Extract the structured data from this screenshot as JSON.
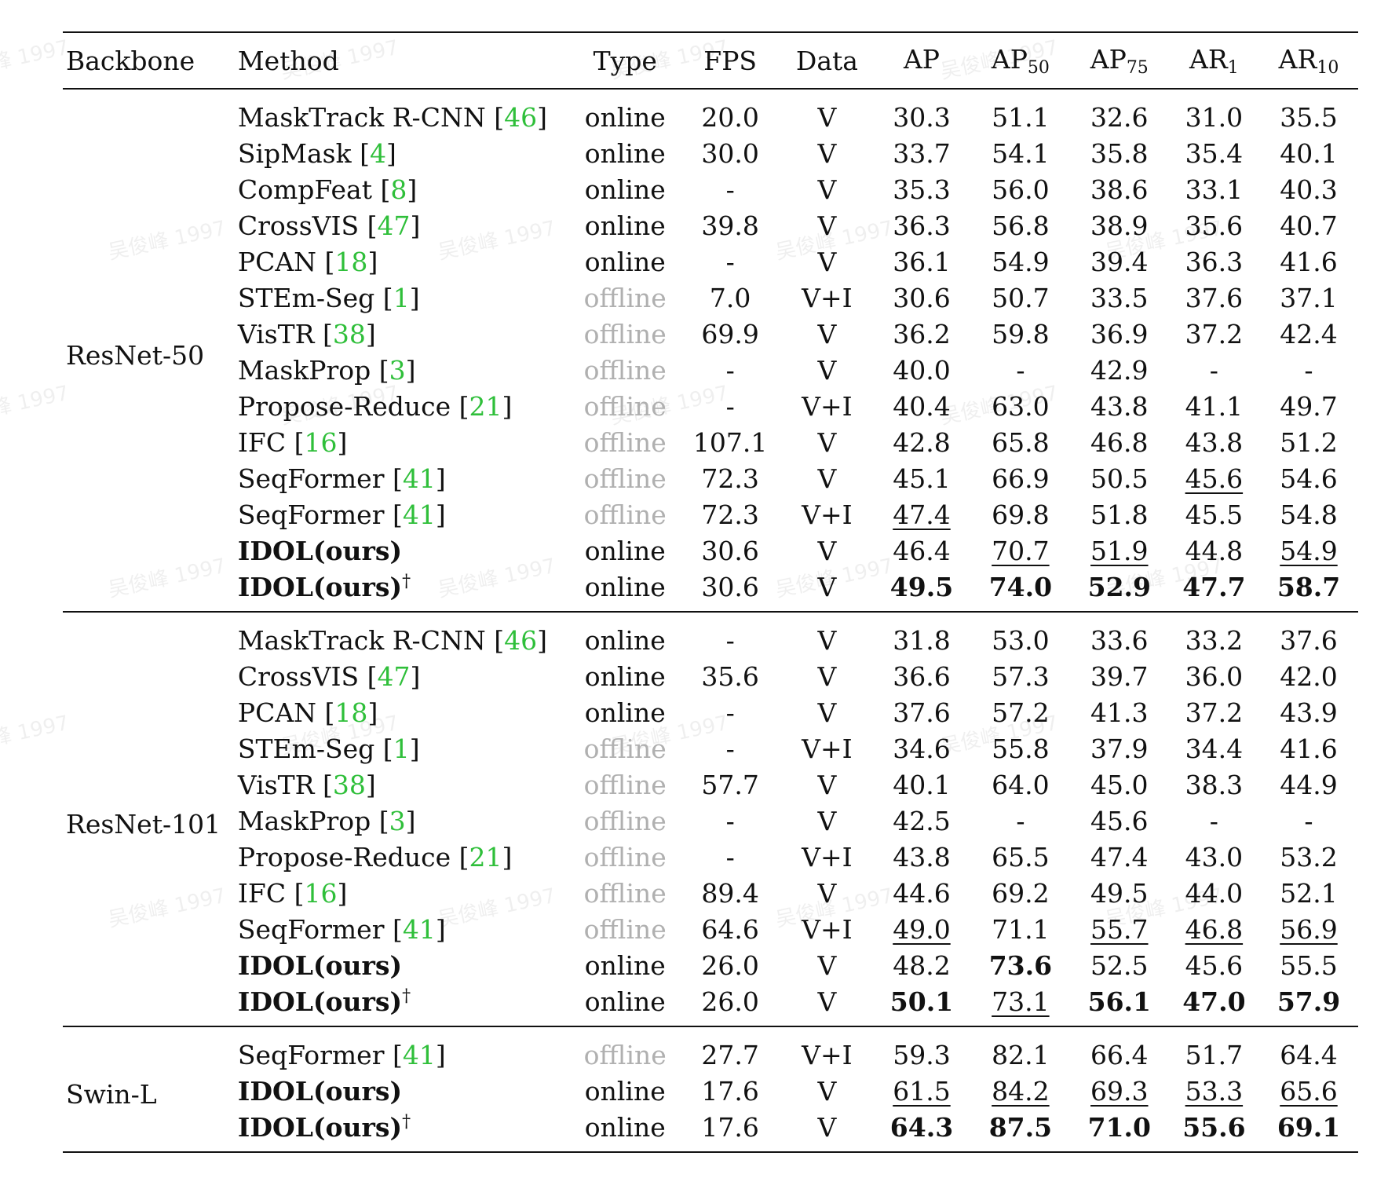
{
  "watermark": "吴俊峰 1997",
  "columns": [
    "Backbone",
    "Method",
    "Type",
    "FPS",
    "Data",
    "AP",
    "AP",
    "AP",
    "AR",
    "AR"
  ],
  "column_subscripts": [
    "",
    "",
    "",
    "",
    "",
    "",
    "50",
    "75",
    "1",
    "10"
  ],
  "groups": [
    {
      "backbone": "ResNet-50",
      "rows": [
        {
          "method": "MaskTrack R-CNN",
          "cite": "46",
          "type": "online",
          "fps": "20.0",
          "data": "V",
          "ap": "30.3",
          "ap50": "51.1",
          "ap75": "32.6",
          "ar1": "31.0",
          "ar10": "35.5"
        },
        {
          "method": "SipMask",
          "cite": "4",
          "type": "online",
          "fps": "30.0",
          "data": "V",
          "ap": "33.7",
          "ap50": "54.1",
          "ap75": "35.8",
          "ar1": "35.4",
          "ar10": "40.1"
        },
        {
          "method": "CompFeat",
          "cite": "8",
          "type": "online",
          "fps": "-",
          "data": "V",
          "ap": "35.3",
          "ap50": "56.0",
          "ap75": "38.6",
          "ar1": "33.1",
          "ar10": "40.3"
        },
        {
          "method": "CrossVIS",
          "cite": "47",
          "type": "online",
          "fps": "39.8",
          "data": "V",
          "ap": "36.3",
          "ap50": "56.8",
          "ap75": "38.9",
          "ar1": "35.6",
          "ar10": "40.7"
        },
        {
          "method": "PCAN",
          "cite": "18",
          "type": "online",
          "fps": "-",
          "data": "V",
          "ap": "36.1",
          "ap50": "54.9",
          "ap75": "39.4",
          "ar1": "36.3",
          "ar10": "41.6"
        },
        {
          "method": "STEm-Seg",
          "cite": "1",
          "type": "offline",
          "fps": "7.0",
          "data": "V+I",
          "ap": "30.6",
          "ap50": "50.7",
          "ap75": "33.5",
          "ar1": "37.6",
          "ar10": "37.1"
        },
        {
          "method": "VisTR",
          "cite": "38",
          "type": "offline",
          "fps": "69.9",
          "data": "V",
          "ap": "36.2",
          "ap50": "59.8",
          "ap75": "36.9",
          "ar1": "37.2",
          "ar10": "42.4"
        },
        {
          "method": "MaskProp",
          "cite": "3",
          "type": "offline",
          "fps": "-",
          "data": "V",
          "ap": "40.0",
          "ap50": "-",
          "ap75": "42.9",
          "ar1": "-",
          "ar10": "-"
        },
        {
          "method": "Propose-Reduce",
          "cite": "21",
          "type": "offline",
          "fps": "-",
          "data": "V+I",
          "ap": "40.4",
          "ap50": "63.0",
          "ap75": "43.8",
          "ar1": "41.1",
          "ar10": "49.7"
        },
        {
          "method": "IFC",
          "cite": "16",
          "type": "offline",
          "fps": "107.1",
          "data": "V",
          "ap": "42.8",
          "ap50": "65.8",
          "ap75": "46.8",
          "ar1": "43.8",
          "ar10": "51.2"
        },
        {
          "method": "SeqFormer",
          "cite": "41",
          "type": "offline",
          "fps": "72.3",
          "data": "V",
          "ap": "45.1",
          "ap50": "66.9",
          "ap75": "50.5",
          "ar1": "45.6",
          "ar10": "54.6",
          "second": [
            "ar1"
          ]
        },
        {
          "method": "SeqFormer",
          "cite": "41",
          "type": "offline",
          "fps": "72.3",
          "data": "V+I",
          "ap": "47.4",
          "ap50": "69.8",
          "ap75": "51.8",
          "ar1": "45.5",
          "ar10": "54.8",
          "second": [
            "ap"
          ]
        },
        {
          "method": "IDOL(ours)",
          "ours": true,
          "type": "online",
          "fps": "30.6",
          "data": "V",
          "ap": "46.4",
          "ap50": "70.7",
          "ap75": "51.9",
          "ar1": "44.8",
          "ar10": "54.9",
          "second": [
            "ap50",
            "ap75",
            "ar10"
          ]
        },
        {
          "method": "IDOL(ours)",
          "ours": true,
          "dagger": "†",
          "type": "online",
          "fps": "30.6",
          "data": "V",
          "ap": "49.5",
          "ap50": "74.0",
          "ap75": "52.9",
          "ar1": "47.7",
          "ar10": "58.7",
          "best": [
            "ap",
            "ap50",
            "ap75",
            "ar1",
            "ar10"
          ]
        }
      ]
    },
    {
      "backbone": "ResNet-101",
      "rows": [
        {
          "method": "MaskTrack R-CNN",
          "cite": "46",
          "type": "online",
          "fps": "-",
          "data": "V",
          "ap": "31.8",
          "ap50": "53.0",
          "ap75": "33.6",
          "ar1": "33.2",
          "ar10": "37.6"
        },
        {
          "method": "CrossVIS",
          "cite": "47",
          "type": "online",
          "fps": "35.6",
          "data": "V",
          "ap": "36.6",
          "ap50": "57.3",
          "ap75": "39.7",
          "ar1": "36.0",
          "ar10": "42.0"
        },
        {
          "method": "PCAN",
          "cite": "18",
          "type": "online",
          "fps": "-",
          "data": "V",
          "ap": "37.6",
          "ap50": "57.2",
          "ap75": "41.3",
          "ar1": "37.2",
          "ar10": "43.9"
        },
        {
          "method": "STEm-Seg",
          "cite": "1",
          "type": "offline",
          "fps": "-",
          "data": "V+I",
          "ap": "34.6",
          "ap50": "55.8",
          "ap75": "37.9",
          "ar1": "34.4",
          "ar10": "41.6"
        },
        {
          "method": "VisTR",
          "cite": "38",
          "type": "offline",
          "fps": "57.7",
          "data": "V",
          "ap": "40.1",
          "ap50": "64.0",
          "ap75": "45.0",
          "ar1": "38.3",
          "ar10": "44.9"
        },
        {
          "method": "MaskProp",
          "cite": "3",
          "type": "offline",
          "fps": "-",
          "data": "V",
          "ap": "42.5",
          "ap50": "-",
          "ap75": "45.6",
          "ar1": "-",
          "ar10": "-"
        },
        {
          "method": "Propose-Reduce",
          "cite": "21",
          "type": "offline",
          "fps": "-",
          "data": "V+I",
          "ap": "43.8",
          "ap50": "65.5",
          "ap75": "47.4",
          "ar1": "43.0",
          "ar10": "53.2"
        },
        {
          "method": "IFC",
          "cite": "16",
          "type": "offline",
          "fps": "89.4",
          "data": "V",
          "ap": "44.6",
          "ap50": "69.2",
          "ap75": "49.5",
          "ar1": "44.0",
          "ar10": "52.1"
        },
        {
          "method": "SeqFormer",
          "cite": "41",
          "type": "offline",
          "fps": "64.6",
          "data": "V+I",
          "ap": "49.0",
          "ap50": "71.1",
          "ap75": "55.7",
          "ar1": "46.8",
          "ar10": "56.9",
          "second": [
            "ap",
            "ap75",
            "ar1",
            "ar10"
          ]
        },
        {
          "method": "IDOL(ours)",
          "ours": true,
          "type": "online",
          "fps": "26.0",
          "data": "V",
          "ap": "48.2",
          "ap50": "73.6",
          "ap75": "52.5",
          "ar1": "45.6",
          "ar10": "55.5",
          "best": [
            "ap50"
          ]
        },
        {
          "method": "IDOL(ours)",
          "ours": true,
          "dagger": "†",
          "type": "online",
          "fps": "26.0",
          "data": "V",
          "ap": "50.1",
          "ap50": "73.1",
          "ap75": "56.1",
          "ar1": "47.0",
          "ar10": "57.9",
          "best": [
            "ap",
            "ap75",
            "ar1",
            "ar10"
          ],
          "second": [
            "ap50"
          ]
        }
      ]
    },
    {
      "backbone": "Swin-L",
      "rows": [
        {
          "method": "SeqFormer",
          "cite": "41",
          "type": "offline",
          "fps": "27.7",
          "data": "V+I",
          "ap": "59.3",
          "ap50": "82.1",
          "ap75": "66.4",
          "ar1": "51.7",
          "ar10": "64.4"
        },
        {
          "method": "IDOL(ours)",
          "ours": true,
          "type": "online",
          "fps": "17.6",
          "data": "V",
          "ap": "61.5",
          "ap50": "84.2",
          "ap75": "69.3",
          "ar1": "53.3",
          "ar10": "65.6",
          "second": [
            "ap",
            "ap50",
            "ap75",
            "ar1",
            "ar10"
          ]
        },
        {
          "method": "IDOL(ours)",
          "ours": true,
          "dagger": "†",
          "type": "online",
          "fps": "17.6",
          "data": "V",
          "ap": "64.3",
          "ap50": "87.5",
          "ap75": "71.0",
          "ar1": "55.6",
          "ar10": "69.1",
          "best": [
            "ap",
            "ap50",
            "ap75",
            "ar1",
            "ar10"
          ]
        }
      ]
    }
  ]
}
